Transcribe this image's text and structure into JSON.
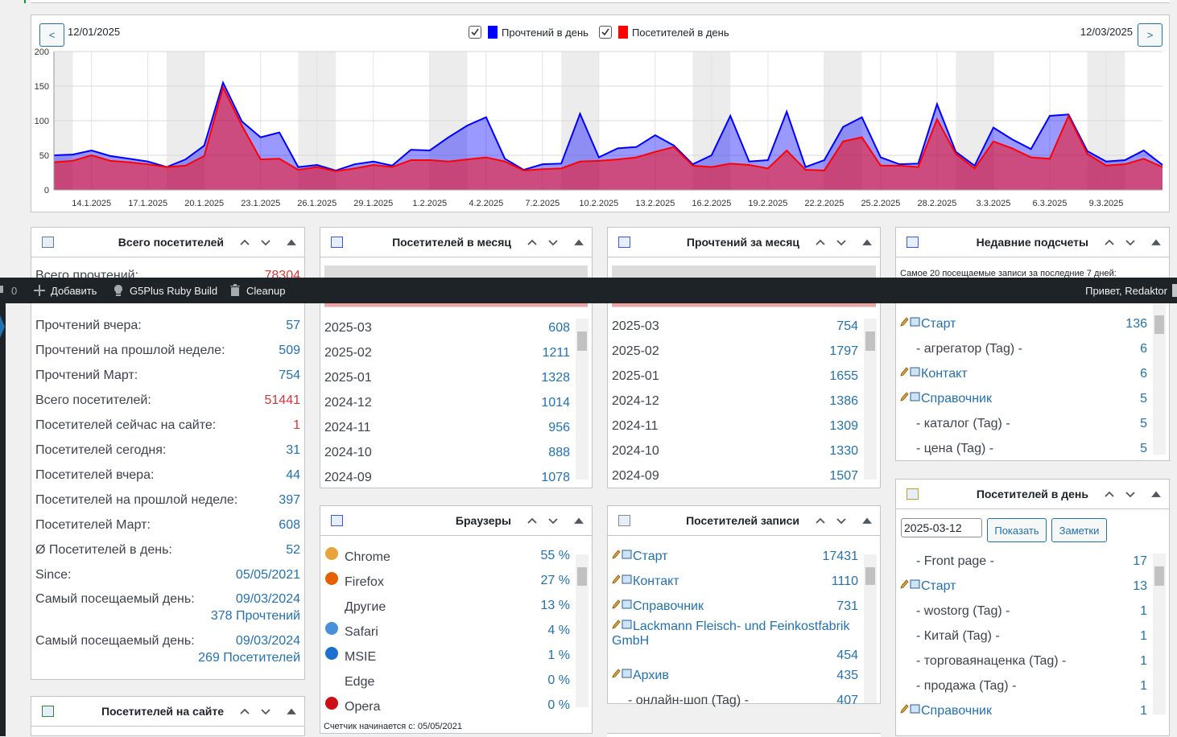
{
  "toolbar": {
    "comments": "0",
    "items": [
      "Добавить",
      "G5Plus Ruby Build",
      "Cleanup"
    ],
    "greeting": "Привет, Redaktor"
  },
  "chart_data": {
    "type": "area",
    "prev": "<",
    "next": ">",
    "date_from": "12/01/2025",
    "date_to": "12/03/2025",
    "categories": [
      null,
      null,
      "14.1.2025",
      null,
      null,
      "17.1.2025",
      null,
      null,
      "20.1.2025",
      null,
      null,
      "23.1.2025",
      null,
      null,
      "26.1.2025",
      null,
      null,
      "29.1.2025",
      null,
      null,
      "1.2.2025",
      null,
      null,
      "4.2.2025",
      null,
      null,
      "7.2.2025",
      null,
      null,
      "10.2.2025",
      null,
      null,
      "13.2.2025",
      null,
      null,
      "16.2.2025",
      null,
      null,
      "19.2.2025",
      null,
      null,
      "22.2.2025",
      null,
      null,
      "25.2.2025",
      null,
      null,
      "28.2.2025",
      null,
      null,
      "3.3.2025",
      null,
      null,
      "6.3.2025",
      null,
      null,
      "9.3.2025",
      null,
      null,
      null
    ],
    "ylim": [
      0,
      200
    ],
    "yticks": [
      0,
      50,
      100,
      150,
      200
    ],
    "grid": true,
    "series": [
      {
        "name": "Прочтений в день",
        "color": "#0000ff",
        "values": [
          50,
          51,
          57,
          49,
          45,
          41,
          33,
          44,
          64,
          155,
          99,
          76,
          83,
          33,
          36,
          28,
          37,
          41,
          35,
          58,
          57,
          76,
          93,
          105,
          45,
          29,
          37,
          38,
          110,
          47,
          60,
          62,
          79,
          64,
          37,
          50,
          107,
          41,
          43,
          113,
          33,
          43,
          91,
          105,
          47,
          37,
          38,
          124,
          55,
          35,
          90,
          73,
          59,
          107,
          109,
          56,
          41,
          43,
          57,
          36
        ]
      },
      {
        "name": "Посетителей в день",
        "color": "#ff0000",
        "values": [
          40,
          42,
          50,
          42,
          40,
          37,
          33,
          35,
          49,
          148,
          93,
          44,
          45,
          29,
          33,
          27,
          31,
          36,
          33,
          43,
          43,
          41,
          44,
          47,
          41,
          28,
          30,
          31,
          41,
          42,
          44,
          47,
          55,
          62,
          35,
          33,
          38,
          36,
          31,
          57,
          29,
          28,
          70,
          76,
          35,
          35,
          33,
          102,
          52,
          31,
          70,
          60,
          47,
          45,
          107,
          52,
          35,
          37,
          45,
          33
        ]
      }
    ]
  },
  "widgets": {
    "total": {
      "title": "Всего посетителей",
      "rows": [
        {
          "label": "Всего прочтений:",
          "value": 78304,
          "highlight": true
        },
        {
          "label": "Прочтений вчера:",
          "value": 57
        },
        {
          "label": "Прочтений на прошлой неделе:",
          "value": 509
        },
        {
          "label": "Прочтений Март:",
          "value": 754
        },
        {
          "label": "Всего посетителей:",
          "value": 51441,
          "highlight": true
        },
        {
          "label": "Посетителей сейчас на сайте:",
          "value": 1,
          "highlight": true
        },
        {
          "label": "Посетителей сегодня:",
          "value": 31
        },
        {
          "label": "Посетителей вчера:",
          "value": 44
        },
        {
          "label": "Посетителей на прошлой неделе:",
          "value": 397
        },
        {
          "label": "Посетителей Март:",
          "value": 608
        },
        {
          "label": "Ø Посетителей в день:",
          "value": 52
        },
        {
          "label": "Since:",
          "value": "05/05/2021"
        },
        {
          "label": "Самый посещаемый день:",
          "value": "09/03/2024",
          "extra": "378 Прочтений"
        },
        {
          "label": "Самый посещаемый день:",
          "value": "09/03/2024",
          "extra": "269 Посетителей"
        }
      ]
    },
    "month_visitors": {
      "title": "Посетителей в месяц",
      "rows": [
        {
          "label": "2025-03",
          "value": 608
        },
        {
          "label": "2025-02",
          "value": 1211
        },
        {
          "label": "2025-01",
          "value": 1328
        },
        {
          "label": "2024-12",
          "value": 1014
        },
        {
          "label": "2024-11",
          "value": 956
        },
        {
          "label": "2024-10",
          "value": 888
        },
        {
          "label": "2024-09",
          "value": 1078
        }
      ]
    },
    "month_reads": {
      "title": "Прочтений за месяц",
      "rows": [
        {
          "label": "2025-03",
          "value": 754
        },
        {
          "label": "2025-02",
          "value": 1797
        },
        {
          "label": "2025-01",
          "value": 1655
        },
        {
          "label": "2024-12",
          "value": 1386
        },
        {
          "label": "2024-11",
          "value": 1309
        },
        {
          "label": "2024-10",
          "value": 1330
        },
        {
          "label": "2024-09",
          "value": 1507
        }
      ]
    },
    "recent": {
      "title": "Недавние подсчеты",
      "subtitle": "Самое 20 посещаемые записи за последние 7 дней:",
      "rows": [
        {
          "label": "Старт",
          "value": 136
        },
        {
          "label": "- агрегатор (Tag) -",
          "value": 6
        },
        {
          "label": "Контакт",
          "value": 6
        },
        {
          "label": "Справочник",
          "value": 5
        },
        {
          "label": "- каталог (Tag) -",
          "value": 5
        },
        {
          "label": "- цена (Tag) -",
          "value": 5
        }
      ]
    },
    "day_visitors": {
      "title": "Посетителей в день",
      "date": "2025-03-12",
      "buttons": [
        "Показать",
        "Заметки"
      ],
      "rows": [
        {
          "label": "- Front page -",
          "value": 17
        },
        {
          "label": "Старт",
          "value": 13
        },
        {
          "label": "- wostorg (Tag) -",
          "value": 1
        },
        {
          "label": "- Китай (Tag) -",
          "value": 1
        },
        {
          "label": "- торговаянаценка (Tag) -",
          "value": 1
        },
        {
          "label": "- продажа (Tag) -",
          "value": 1
        },
        {
          "label": "Справочник",
          "value": 1
        }
      ]
    },
    "browsers": {
      "title": "Браузеры",
      "footer": "Счетчик начинается с: 05/05/2021",
      "rows": [
        {
          "label": "Chrome",
          "value": "55 %"
        },
        {
          "label": "Firefox",
          "value": "27 %"
        },
        {
          "label": "Другие",
          "value": "13 %"
        },
        {
          "label": "Safari",
          "value": "4 %"
        },
        {
          "label": "MSIE",
          "value": "1 %"
        },
        {
          "label": "Edge",
          "value": "0 %"
        },
        {
          "label": "Opera",
          "value": "0 %"
        }
      ]
    },
    "posts": {
      "title": "Посетителей записи",
      "rows": [
        {
          "label": "Старт",
          "value": 17431
        },
        {
          "label": "Контакт",
          "value": 1110
        },
        {
          "label": "Справочник",
          "value": 731
        },
        {
          "label": "Lackmann Fleisch- und Feinkostfabrik GmbH",
          "value": 454
        },
        {
          "label": "Архив",
          "value": 435
        },
        {
          "label": "- онлайн-шоп (Tag) -",
          "value": 407
        }
      ]
    },
    "online": {
      "title": "Посетителей на сайте",
      "rows": []
    }
  }
}
